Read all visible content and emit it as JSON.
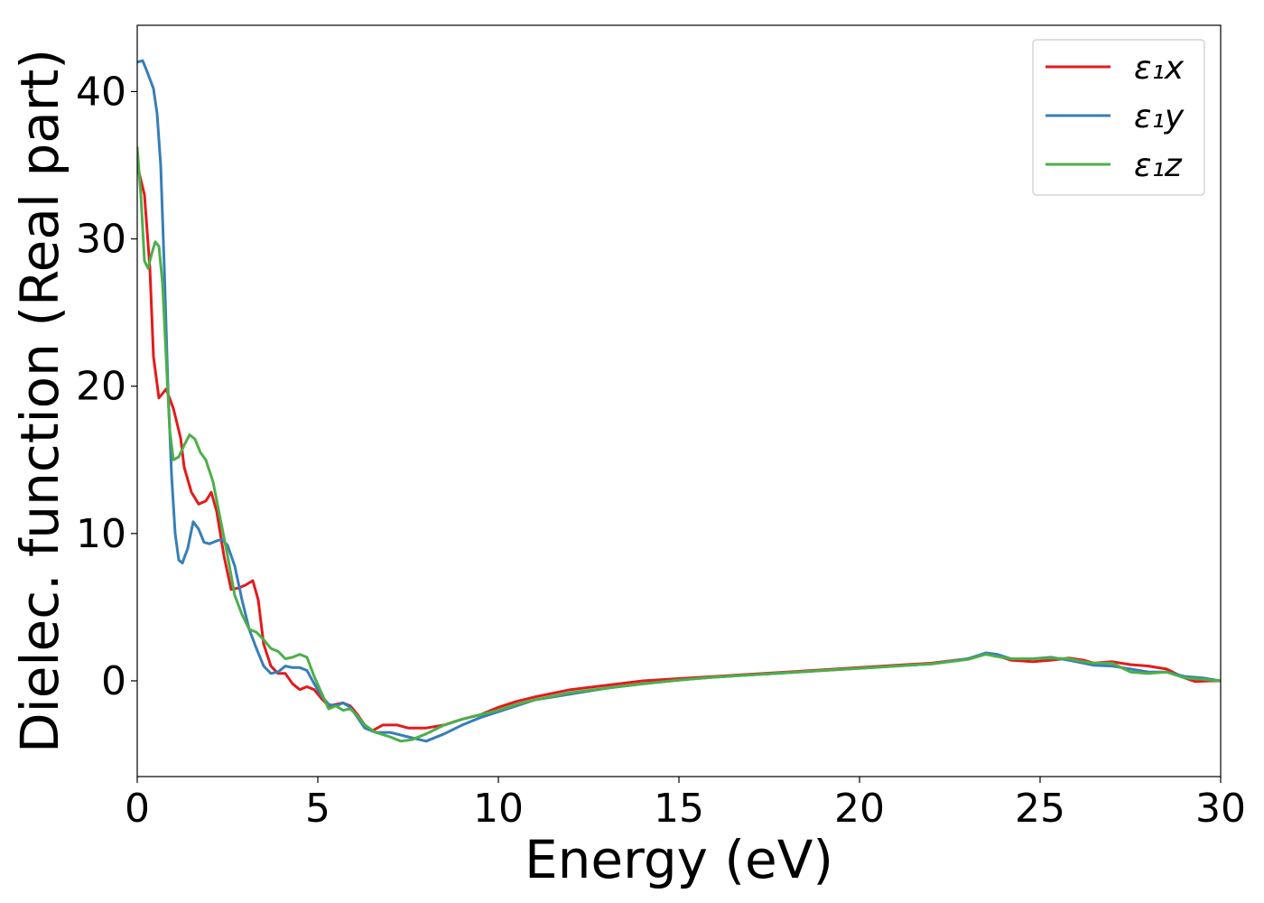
{
  "chart_data": {
    "type": "line",
    "xlabel": "Energy (eV)",
    "ylabel": "Dielec. function (Real part)",
    "xlim": [
      0,
      30
    ],
    "ylim": [
      -6.5,
      44.5
    ],
    "xticks": [
      0,
      5,
      10,
      15,
      20,
      25,
      30
    ],
    "yticks": [
      0,
      10,
      20,
      30,
      40
    ],
    "grid": false,
    "legend_position": "top-right",
    "series": [
      {
        "name": "ε₁x",
        "color": "#e41a1c",
        "points": [
          [
            0,
            35
          ],
          [
            0.2,
            33
          ],
          [
            0.35,
            28
          ],
          [
            0.45,
            22
          ],
          [
            0.6,
            19.2
          ],
          [
            0.8,
            19.8
          ],
          [
            1.0,
            18.5
          ],
          [
            1.2,
            16.5
          ],
          [
            1.3,
            14.5
          ],
          [
            1.5,
            12.8
          ],
          [
            1.7,
            12.0
          ],
          [
            1.9,
            12.2
          ],
          [
            2.05,
            12.8
          ],
          [
            2.2,
            11.5
          ],
          [
            2.4,
            8.5
          ],
          [
            2.6,
            6.2
          ],
          [
            2.8,
            6.3
          ],
          [
            3.0,
            6.5
          ],
          [
            3.2,
            6.8
          ],
          [
            3.35,
            5.5
          ],
          [
            3.5,
            2.5
          ],
          [
            3.7,
            1.0
          ],
          [
            3.9,
            0.5
          ],
          [
            4.1,
            0.5
          ],
          [
            4.3,
            -0.2
          ],
          [
            4.5,
            -0.6
          ],
          [
            4.7,
            -0.4
          ],
          [
            4.9,
            -0.6
          ],
          [
            5.1,
            -1.2
          ],
          [
            5.3,
            -1.7
          ],
          [
            5.5,
            -1.6
          ],
          [
            5.7,
            -1.5
          ],
          [
            5.9,
            -1.7
          ],
          [
            6.1,
            -2.3
          ],
          [
            6.3,
            -3.0
          ],
          [
            6.5,
            -3.4
          ],
          [
            6.8,
            -3.0
          ],
          [
            7.2,
            -3.0
          ],
          [
            7.5,
            -3.2
          ],
          [
            8.0,
            -3.2
          ],
          [
            8.5,
            -3.0
          ],
          [
            9.0,
            -2.6
          ],
          [
            9.5,
            -2.3
          ],
          [
            10.0,
            -1.8
          ],
          [
            10.5,
            -1.4
          ],
          [
            11,
            -1.1
          ],
          [
            12,
            -0.6
          ],
          [
            13,
            -0.3
          ],
          [
            14,
            0.0
          ],
          [
            15,
            0.15
          ],
          [
            16,
            0.3
          ],
          [
            17,
            0.45
          ],
          [
            18,
            0.6
          ],
          [
            19,
            0.75
          ],
          [
            20,
            0.9
          ],
          [
            21,
            1.05
          ],
          [
            22,
            1.2
          ],
          [
            23,
            1.5
          ],
          [
            23.5,
            1.85
          ],
          [
            23.8,
            1.7
          ],
          [
            24.2,
            1.4
          ],
          [
            24.8,
            1.3
          ],
          [
            25.3,
            1.4
          ],
          [
            25.8,
            1.55
          ],
          [
            26.2,
            1.4
          ],
          [
            26.5,
            1.2
          ],
          [
            27.0,
            1.3
          ],
          [
            27.5,
            1.1
          ],
          [
            28.0,
            1.0
          ],
          [
            28.5,
            0.8
          ],
          [
            29.0,
            0.2
          ],
          [
            29.3,
            -0.05
          ],
          [
            29.7,
            0.0
          ],
          [
            30,
            0.0
          ]
        ]
      },
      {
        "name": "ε₁y",
        "color": "#377eb8",
        "points": [
          [
            0,
            42.0
          ],
          [
            0.15,
            42.1
          ],
          [
            0.25,
            41.5
          ],
          [
            0.45,
            40.2
          ],
          [
            0.55,
            38.5
          ],
          [
            0.65,
            35
          ],
          [
            0.75,
            28
          ],
          [
            0.85,
            20
          ],
          [
            0.95,
            14
          ],
          [
            1.05,
            10
          ],
          [
            1.15,
            8.2
          ],
          [
            1.25,
            8.0
          ],
          [
            1.4,
            9.0
          ],
          [
            1.55,
            10.8
          ],
          [
            1.7,
            10.3
          ],
          [
            1.85,
            9.4
          ],
          [
            2.0,
            9.3
          ],
          [
            2.2,
            9.5
          ],
          [
            2.35,
            9.6
          ],
          [
            2.5,
            9.2
          ],
          [
            2.7,
            7.8
          ],
          [
            2.9,
            5.5
          ],
          [
            3.1,
            3.5
          ],
          [
            3.3,
            2.2
          ],
          [
            3.5,
            1.0
          ],
          [
            3.7,
            0.5
          ],
          [
            3.9,
            0.6
          ],
          [
            4.1,
            1.0
          ],
          [
            4.3,
            0.9
          ],
          [
            4.5,
            0.9
          ],
          [
            4.7,
            0.7
          ],
          [
            4.9,
            -0.2
          ],
          [
            5.1,
            -1.0
          ],
          [
            5.3,
            -1.6
          ],
          [
            5.5,
            -1.7
          ],
          [
            5.7,
            -1.5
          ],
          [
            5.9,
            -1.8
          ],
          [
            6.1,
            -2.5
          ],
          [
            6.3,
            -3.2
          ],
          [
            6.6,
            -3.5
          ],
          [
            7.0,
            -3.5
          ],
          [
            7.5,
            -3.8
          ],
          [
            8.0,
            -4.1
          ],
          [
            8.5,
            -3.6
          ],
          [
            9.0,
            -3.0
          ],
          [
            9.5,
            -2.5
          ],
          [
            10.0,
            -2.1
          ],
          [
            11,
            -1.3
          ],
          [
            12,
            -0.9
          ],
          [
            13,
            -0.5
          ],
          [
            14,
            -0.2
          ],
          [
            15,
            0.05
          ],
          [
            16,
            0.25
          ],
          [
            17,
            0.4
          ],
          [
            18,
            0.55
          ],
          [
            19,
            0.7
          ],
          [
            20,
            0.85
          ],
          [
            21,
            1.0
          ],
          [
            22,
            1.15
          ],
          [
            23,
            1.5
          ],
          [
            23.5,
            1.9
          ],
          [
            23.8,
            1.8
          ],
          [
            24.2,
            1.5
          ],
          [
            24.8,
            1.5
          ],
          [
            25.3,
            1.6
          ],
          [
            25.8,
            1.4
          ],
          [
            26.2,
            1.2
          ],
          [
            26.5,
            1.05
          ],
          [
            27.0,
            1.0
          ],
          [
            27.5,
            0.8
          ],
          [
            28.0,
            0.6
          ],
          [
            28.5,
            0.6
          ],
          [
            29.0,
            0.3
          ],
          [
            29.5,
            0.2
          ],
          [
            30,
            0.0
          ]
        ]
      },
      {
        "name": "ε₁z",
        "color": "#4daf4a",
        "points": [
          [
            0,
            36.2
          ],
          [
            0.1,
            33
          ],
          [
            0.2,
            28.5
          ],
          [
            0.3,
            28.0
          ],
          [
            0.4,
            29.0
          ],
          [
            0.5,
            29.8
          ],
          [
            0.6,
            29.5
          ],
          [
            0.7,
            27
          ],
          [
            0.8,
            22
          ],
          [
            0.9,
            17
          ],
          [
            1.0,
            15.0
          ],
          [
            1.15,
            15.2
          ],
          [
            1.3,
            16.0
          ],
          [
            1.45,
            16.7
          ],
          [
            1.6,
            16.4
          ],
          [
            1.75,
            15.5
          ],
          [
            1.9,
            15.0
          ],
          [
            2.1,
            13.5
          ],
          [
            2.3,
            11.0
          ],
          [
            2.5,
            8.5
          ],
          [
            2.7,
            5.8
          ],
          [
            2.9,
            4.5
          ],
          [
            3.1,
            3.5
          ],
          [
            3.3,
            3.3
          ],
          [
            3.5,
            2.8
          ],
          [
            3.7,
            2.2
          ],
          [
            3.9,
            2.0
          ],
          [
            4.1,
            1.5
          ],
          [
            4.3,
            1.6
          ],
          [
            4.5,
            1.8
          ],
          [
            4.7,
            1.6
          ],
          [
            4.9,
            0.3
          ],
          [
            5.1,
            -0.8
          ],
          [
            5.3,
            -1.9
          ],
          [
            5.5,
            -1.7
          ],
          [
            5.7,
            -2.0
          ],
          [
            5.9,
            -1.9
          ],
          [
            6.1,
            -2.4
          ],
          [
            6.3,
            -3.0
          ],
          [
            6.6,
            -3.5
          ],
          [
            7.0,
            -3.8
          ],
          [
            7.3,
            -4.1
          ],
          [
            7.6,
            -4.0
          ],
          [
            8.0,
            -3.6
          ],
          [
            8.5,
            -3.0
          ],
          [
            9.0,
            -2.6
          ],
          [
            9.5,
            -2.3
          ],
          [
            10.0,
            -2.0
          ],
          [
            10.5,
            -1.6
          ],
          [
            11,
            -1.3
          ],
          [
            12,
            -0.8
          ],
          [
            13,
            -0.5
          ],
          [
            14,
            -0.2
          ],
          [
            15,
            0.05
          ],
          [
            16,
            0.25
          ],
          [
            17,
            0.4
          ],
          [
            18,
            0.55
          ],
          [
            19,
            0.7
          ],
          [
            20,
            0.85
          ],
          [
            21,
            1.0
          ],
          [
            22,
            1.15
          ],
          [
            23,
            1.45
          ],
          [
            23.5,
            1.8
          ],
          [
            23.8,
            1.65
          ],
          [
            24.2,
            1.5
          ],
          [
            24.8,
            1.5
          ],
          [
            25.3,
            1.55
          ],
          [
            25.8,
            1.5
          ],
          [
            26.2,
            1.3
          ],
          [
            26.5,
            1.2
          ],
          [
            27.0,
            1.2
          ],
          [
            27.5,
            0.6
          ],
          [
            28.0,
            0.5
          ],
          [
            28.5,
            0.6
          ],
          [
            29.0,
            0.2
          ],
          [
            29.5,
            0.1
          ],
          [
            30,
            0.0
          ]
        ]
      }
    ]
  }
}
